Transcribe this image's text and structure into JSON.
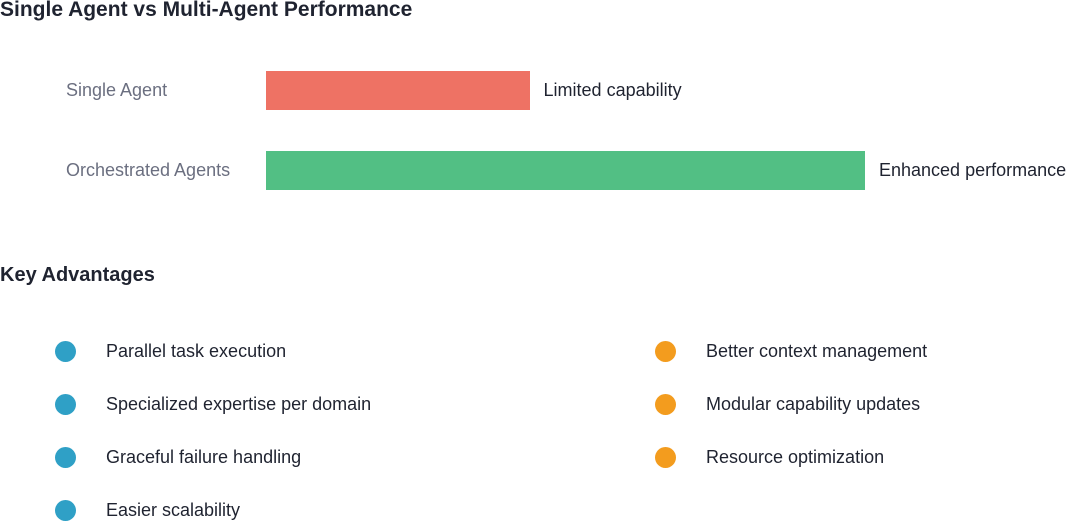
{
  "chart_data": {
    "type": "bar",
    "orientation": "horizontal",
    "title": "Single Agent vs Multi-Agent Performance",
    "categories": [
      "Single Agent",
      "Orchestrated Agents"
    ],
    "values": [
      44,
      100
    ],
    "xlim": [
      0,
      100
    ],
    "bar_labels": [
      "Limited capability",
      "Enhanced performance"
    ],
    "colors": [
      "#ee7264",
      "#52bf84"
    ],
    "grid": false,
    "axes_visible": false
  },
  "advantages": {
    "title": "Key Advantages",
    "left_color": "#2fa0c6",
    "right_color": "#f39c1e",
    "left": [
      "Parallel task execution",
      "Specialized expertise per domain",
      "Graceful failure handling",
      "Easier scalability"
    ],
    "right": [
      "Better context management",
      "Modular capability updates",
      "Resource optimization"
    ]
  }
}
